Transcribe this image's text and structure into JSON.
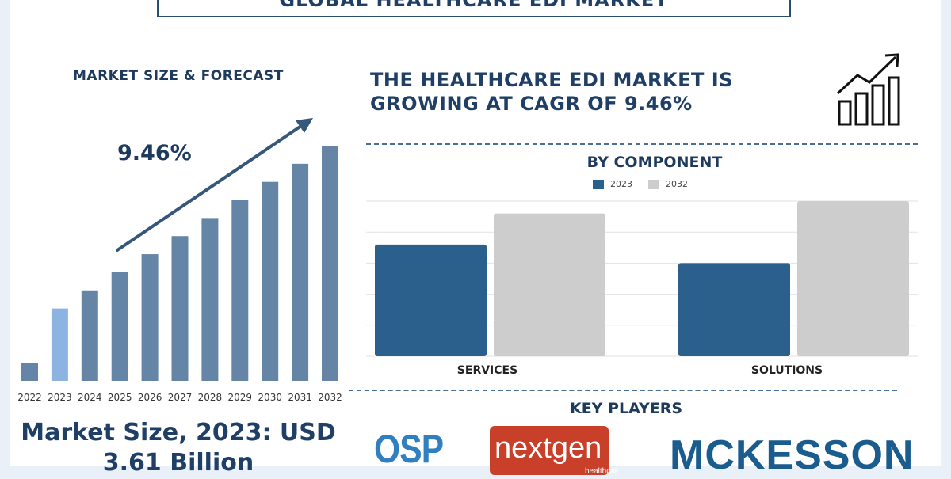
{
  "title": "Global Healthcare EDI Market",
  "left_panel": {
    "heading": "MARKET SIZE & FORECAST",
    "cagr": "9.46%",
    "market_size_text": "Market Size, 2023: USD 3.61 Billion"
  },
  "headline": "THE HEALTHCARE EDI MARKET IS GROWING AT CAGR OF 9.46%",
  "component": {
    "title": "BY COMPONENT",
    "legend": [
      "2023",
      "2032"
    ]
  },
  "key_players": {
    "title": "KEY PLAYERS",
    "logos": [
      {
        "name": "OSP",
        "text": "OSP"
      },
      {
        "name": "NextGen Healthcare",
        "text": "nextgen",
        "sub": "healthcare"
      },
      {
        "name": "McKesson",
        "text": "MCKESSON"
      }
    ]
  },
  "icons": [
    "growth-chart-icon",
    "trend-arrow-icon"
  ],
  "colors": {
    "bar_default": "#6585a6",
    "bar_highlight": "#8db3e2",
    "series_2023": "#2b5f8c",
    "series_2032": "#cdcdcd",
    "title": "#1f3f66",
    "nextgen_red": "#c9402a"
  },
  "chart_data": [
    {
      "type": "bar",
      "categories": [
        "2022",
        "2023",
        "2024",
        "2025",
        "2026",
        "2027",
        "2028",
        "2029",
        "2030",
        "2031",
        "2032"
      ],
      "values": [
        1,
        4,
        5,
        6,
        7,
        8,
        9,
        10,
        11,
        12,
        13
      ],
      "highlight": [
        "2023"
      ],
      "grid": false
    },
    {
      "type": "bar",
      "title": "BY COMPONENT",
      "categories": [
        "SERVICES",
        "SOLUTIONS"
      ],
      "series": [
        {
          "name": "2023",
          "values": [
            72,
            60
          ]
        },
        {
          "name": "2032",
          "values": [
            92,
            100
          ]
        }
      ],
      "ylim": [
        0,
        100
      ],
      "grid": true
    }
  ]
}
